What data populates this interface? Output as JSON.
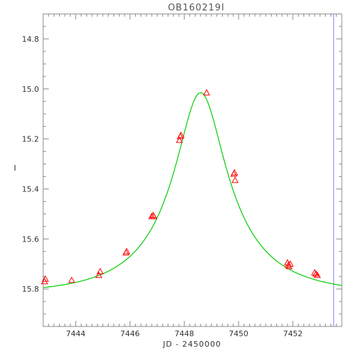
{
  "chart_data": {
    "type": "scatter",
    "title": "OB160219I",
    "xlabel": "JD - 2450000",
    "ylabel": "I",
    "xlim": [
      7442.8,
      7453.8
    ],
    "ylim": [
      15.95,
      14.7
    ],
    "y_inverted": true,
    "xticks": [
      "7444",
      "7446",
      "7448",
      "7450",
      "7452"
    ],
    "yticks": [
      "14.8",
      "15.0",
      "15.2",
      "15.4",
      "15.6",
      "15.8"
    ],
    "marker_color": "#ff0000",
    "fit_color": "#00cc00",
    "vline_color": "#8080ff",
    "vline_x": 7453.5,
    "series": [
      {
        "type": "scatter",
        "marker": "triangle",
        "x": [
          7442.85,
          7442.88,
          7443.85,
          7444.85,
          7444.9,
          7445.85,
          7445.88,
          7446.8,
          7446.85,
          7446.88,
          7447.82,
          7447.85,
          7447.88,
          7448.82,
          7449.82,
          7449.85,
          7449.87,
          7451.8,
          7451.83,
          7451.86,
          7451.9,
          7452.8,
          7452.85,
          7452.9
        ],
        "y": [
          15.77,
          15.76,
          15.765,
          15.745,
          15.73,
          15.655,
          15.65,
          15.51,
          15.505,
          15.51,
          15.205,
          15.19,
          15.185,
          15.015,
          15.34,
          15.335,
          15.365,
          15.695,
          15.705,
          15.71,
          15.7,
          15.735,
          15.74,
          15.745
        ]
      },
      {
        "type": "line",
        "fit": {
          "t0": 7448.6,
          "tE": 3.2,
          "u0": 0.3,
          "baseline": 15.82
        }
      }
    ]
  }
}
